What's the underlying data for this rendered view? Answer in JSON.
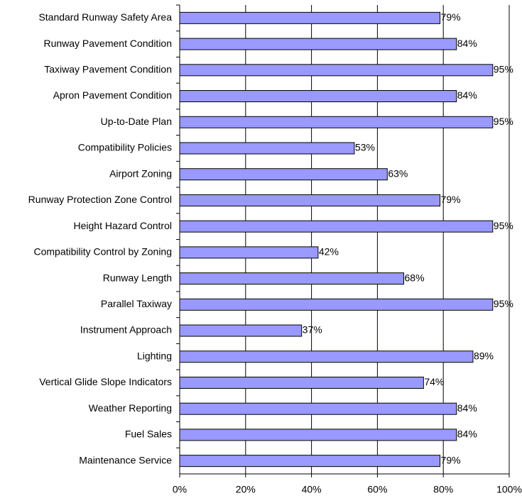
{
  "chart_data": {
    "type": "bar",
    "orientation": "horizontal",
    "categories": [
      "Standard Runway Safety Area",
      "Runway Pavement Condition",
      "Taxiway Pavement Condition",
      "Apron Pavement Condition",
      "Up-to-Date Plan",
      "Compatibility Policies",
      "Airport Zoning",
      "Runway Protection Zone Control",
      "Height Hazard Control",
      "Compatibility Control by Zoning",
      "Runway Length",
      "Parallel Taxiway",
      "Instrument Approach",
      "Lighting",
      "Vertical Glide Slope Indicators",
      "Weather Reporting",
      "Fuel Sales",
      "Maintenance Service"
    ],
    "values": [
      79,
      84,
      95,
      84,
      95,
      53,
      63,
      79,
      95,
      42,
      68,
      95,
      37,
      89,
      74,
      84,
      84,
      79
    ],
    "value_labels": [
      "79%",
      "84%",
      "95%",
      "84%",
      "95%",
      "53%",
      "63%",
      "79%",
      "95%",
      "42%",
      "68%",
      "95%",
      "37%",
      "89%",
      "74%",
      "84%",
      "84%",
      "79%"
    ],
    "color": "#9999ff",
    "xlim": [
      0,
      100
    ],
    "xticks": [
      {
        "value": 0,
        "label": "0%"
      },
      {
        "value": 20,
        "label": "20%"
      },
      {
        "value": 40,
        "label": "40%"
      },
      {
        "value": 60,
        "label": "60%"
      },
      {
        "value": 80,
        "label": "80%"
      },
      {
        "value": 100,
        "label": "100%"
      }
    ],
    "grid": true
  }
}
